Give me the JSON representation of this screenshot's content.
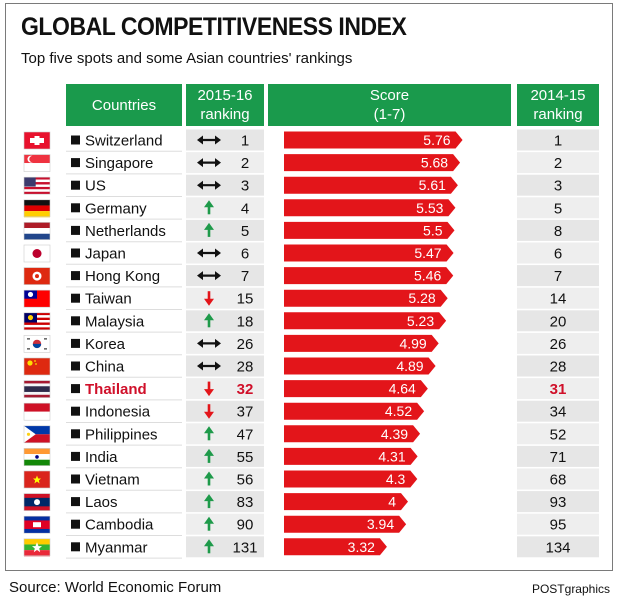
{
  "title": "GLOBAL COMPETITIVENESS INDEX",
  "subtitle": "Top five spots and some Asian countries' rankings",
  "headers": {
    "countries": "Countries",
    "rank2015_line1": "2015-16",
    "rank2015_line2": "ranking",
    "score_line1": "Score",
    "score_line2": "(1-7)",
    "rank2014_line1": "2014-15",
    "rank2014_line2": "ranking"
  },
  "source": "Source: World Economic Forum",
  "credit": "POSTgraphics",
  "colors": {
    "header_green": "#1a9a4c",
    "bar_red": "#e3151a",
    "arrow_green": "#1e9a4a",
    "arrow_red": "#e3151a",
    "highlight": "#d0102a"
  },
  "chart_data": {
    "type": "table",
    "title": "GLOBAL COMPETITIVENESS INDEX",
    "subtitle": "Top five spots and some Asian countries' rankings",
    "score_range": [
      1,
      7
    ],
    "rows": [
      {
        "country": "Switzerland",
        "trend": "same",
        "rank_2015_16": 1,
        "score": 5.76,
        "rank_2014_15": 1,
        "flag": "switzerland-flag"
      },
      {
        "country": "Singapore",
        "trend": "same",
        "rank_2015_16": 2,
        "score": 5.68,
        "rank_2014_15": 2,
        "flag": "singapore-flag"
      },
      {
        "country": "US",
        "trend": "same",
        "rank_2015_16": 3,
        "score": 5.61,
        "rank_2014_15": 3,
        "flag": "us-flag"
      },
      {
        "country": "Germany",
        "trend": "up",
        "rank_2015_16": 4,
        "score": 5.53,
        "rank_2014_15": 5,
        "flag": "germany-flag"
      },
      {
        "country": "Netherlands",
        "trend": "up",
        "rank_2015_16": 5,
        "score": 5.5,
        "rank_2014_15": 8,
        "flag": "netherlands-flag"
      },
      {
        "country": "Japan",
        "trend": "same",
        "rank_2015_16": 6,
        "score": 5.47,
        "rank_2014_15": 6,
        "flag": "japan-flag"
      },
      {
        "country": "Hong Kong",
        "trend": "same",
        "rank_2015_16": 7,
        "score": 5.46,
        "rank_2014_15": 7,
        "flag": "hong-kong-flag"
      },
      {
        "country": "Taiwan",
        "trend": "down",
        "rank_2015_16": 15,
        "score": 5.28,
        "rank_2014_15": 14,
        "flag": "taiwan-flag"
      },
      {
        "country": "Malaysia",
        "trend": "up",
        "rank_2015_16": 18,
        "score": 5.23,
        "rank_2014_15": 20,
        "flag": "malaysia-flag"
      },
      {
        "country": "Korea",
        "trend": "same",
        "rank_2015_16": 26,
        "score": 4.99,
        "rank_2014_15": 26,
        "flag": "korea-flag"
      },
      {
        "country": "China",
        "trend": "same",
        "rank_2015_16": 28,
        "score": 4.89,
        "rank_2014_15": 28,
        "flag": "china-flag"
      },
      {
        "country": "Thailand",
        "trend": "down",
        "rank_2015_16": 32,
        "score": 4.64,
        "rank_2014_15": 31,
        "flag": "thailand-flag",
        "highlight": true
      },
      {
        "country": "Indonesia",
        "trend": "down",
        "rank_2015_16": 37,
        "score": 4.52,
        "rank_2014_15": 34,
        "flag": "indonesia-flag"
      },
      {
        "country": "Philippines",
        "trend": "up",
        "rank_2015_16": 47,
        "score": 4.39,
        "rank_2014_15": 52,
        "flag": "philippines-flag"
      },
      {
        "country": "India",
        "trend": "up",
        "rank_2015_16": 55,
        "score": 4.31,
        "rank_2014_15": 71,
        "flag": "india-flag"
      },
      {
        "country": "Vietnam",
        "trend": "up",
        "rank_2015_16": 56,
        "score": 4.3,
        "rank_2014_15": 68,
        "flag": "vietnam-flag"
      },
      {
        "country": "Laos",
        "trend": "up",
        "rank_2015_16": 83,
        "score": 4,
        "rank_2014_15": 93,
        "flag": "laos-flag"
      },
      {
        "country": "Cambodia",
        "trend": "up",
        "rank_2015_16": 90,
        "score": 3.94,
        "rank_2014_15": 95,
        "flag": "cambodia-flag"
      },
      {
        "country": "Myanmar",
        "trend": "up",
        "rank_2015_16": 131,
        "score": 3.32,
        "rank_2014_15": 134,
        "flag": "myanmar-flag"
      }
    ]
  }
}
